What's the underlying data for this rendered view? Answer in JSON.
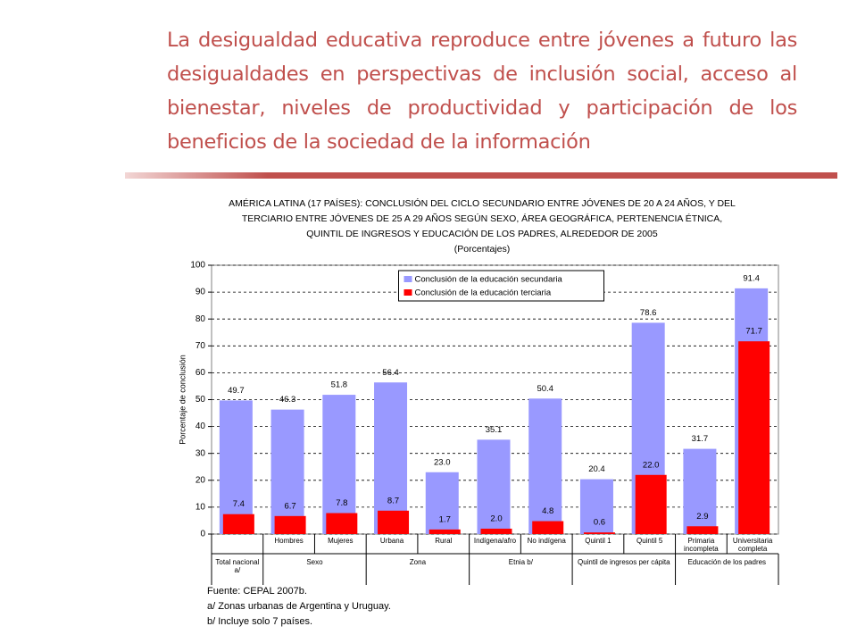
{
  "heading": "La desigualdad educativa reproduce entre jóvenes a futuro las desigualdades en perspectivas de inclusión social, acceso al bienestar, niveles de productividad y participación de los beneficios de la sociedad de la información",
  "chart_data": {
    "type": "bar",
    "title": [
      "AMÉRICA LATINA (17 PAÍSES): CONCLUSIÓN DEL CICLO SECUNDARIO ENTRE JÓVENES DE 20 A 24 AÑOS, Y DEL",
      "TERCIARIO ENTRE JÓVENES DE 25 A 29 AÑOS SEGÚN SEXO, ÁREA GEOGRÁFICA, PERTENENCIA ÉTNICA,",
      "QUINTIL DE INGRESOS Y EDUCACIÓN DE LOS PADRES, ALREDEDOR DE 2005"
    ],
    "subtitle": "(Porcentajes)",
    "ylabel": "Porcentaje de conclusión",
    "categories": [
      null,
      "Hombres",
      "Mujeres",
      "Urbana",
      "Rural",
      "Indígena/afro",
      "No indígena",
      "Quintil 1",
      "Quintil 5",
      "Primaria incompleta",
      "Universitaria completa"
    ],
    "groups": [
      {
        "label": "Total nacional a/",
        "span": 1
      },
      {
        "label": "Sexo",
        "span": 2
      },
      {
        "label": "Zona",
        "span": 2
      },
      {
        "label": "Etnia b/",
        "span": 2
      },
      {
        "label": "Quintil de ingresos per cápita",
        "span": 2
      },
      {
        "label": "Educación de los padres",
        "span": 2
      }
    ],
    "series": [
      {
        "name": "Conclusión de la educación secundaria",
        "color": "#9999ff",
        "values": [
          49.7,
          46.3,
          51.8,
          56.4,
          23.0,
          35.1,
          50.4,
          20.4,
          78.6,
          31.7,
          91.4
        ],
        "value_labels": [
          "49.7",
          "46.3",
          "51.8",
          "56.4",
          "23.0",
          "35.1",
          "50.4",
          "20.4",
          "78.6",
          "31.7",
          "91.4"
        ]
      },
      {
        "name": "Conclusión de la educación terciaria",
        "color": "#ff0000",
        "values": [
          7.4,
          6.7,
          7.8,
          8.7,
          1.7,
          2.0,
          4.8,
          0.6,
          22.0,
          2.9,
          71.7
        ],
        "value_labels": [
          "7.4",
          "6.7",
          "7.8",
          "8.7",
          "1.7",
          "2.0",
          "4.8",
          "0.6",
          "22.0",
          "2.9",
          "71.7"
        ]
      }
    ],
    "ylim": [
      0,
      100
    ],
    "yticks": [
      0,
      10,
      20,
      30,
      40,
      50,
      60,
      70,
      80,
      90,
      100
    ],
    "grid": true,
    "legend": "upper center"
  },
  "notes": [
    "Fuente: CEPAL 2007b.",
    "a/ Zonas urbanas de Argentina y Uruguay.",
    "b/ Incluye solo 7 países."
  ]
}
